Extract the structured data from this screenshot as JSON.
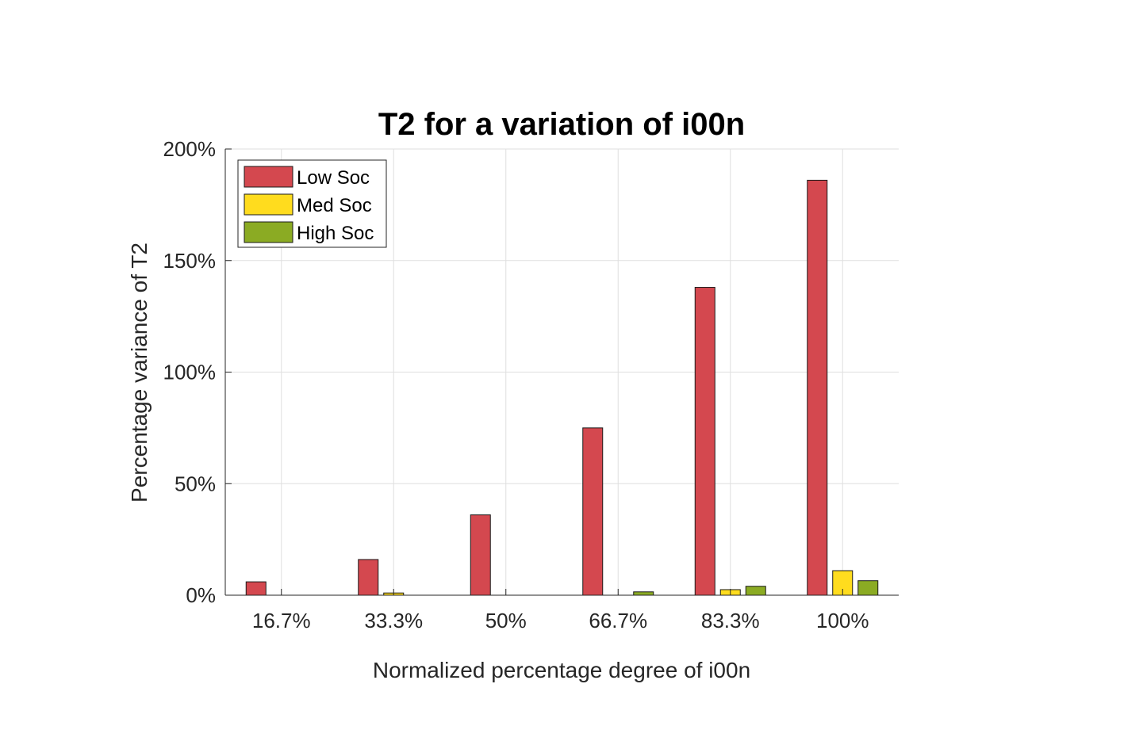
{
  "chart_data": {
    "type": "bar",
    "title": "T2 for a variation of i00n",
    "xlabel": "Normalized percentage degree of i00n",
    "ylabel": "Percentage variance of T2",
    "categories": [
      "16.7%",
      "33.3%",
      "50%",
      "66.7%",
      "83.3%",
      "100%"
    ],
    "series": [
      {
        "name": "Low Soc",
        "color": "#d4484f",
        "values": [
          6,
          16,
          36,
          75,
          138,
          186
        ]
      },
      {
        "name": "Med Soc",
        "color": "#ffdc1e",
        "values": [
          0,
          1,
          0,
          0,
          2.5,
          11
        ]
      },
      {
        "name": "High Soc",
        "color": "#8bab23",
        "values": [
          0,
          0,
          0,
          1.5,
          4,
          6.5
        ]
      }
    ],
    "ylim": [
      0,
      200
    ],
    "yticks": [
      0,
      50,
      100,
      150,
      200
    ],
    "ytick_labels": [
      "0%",
      "50%",
      "100%",
      "150%",
      "200%"
    ],
    "grid": true,
    "legend_position": "top-left"
  }
}
